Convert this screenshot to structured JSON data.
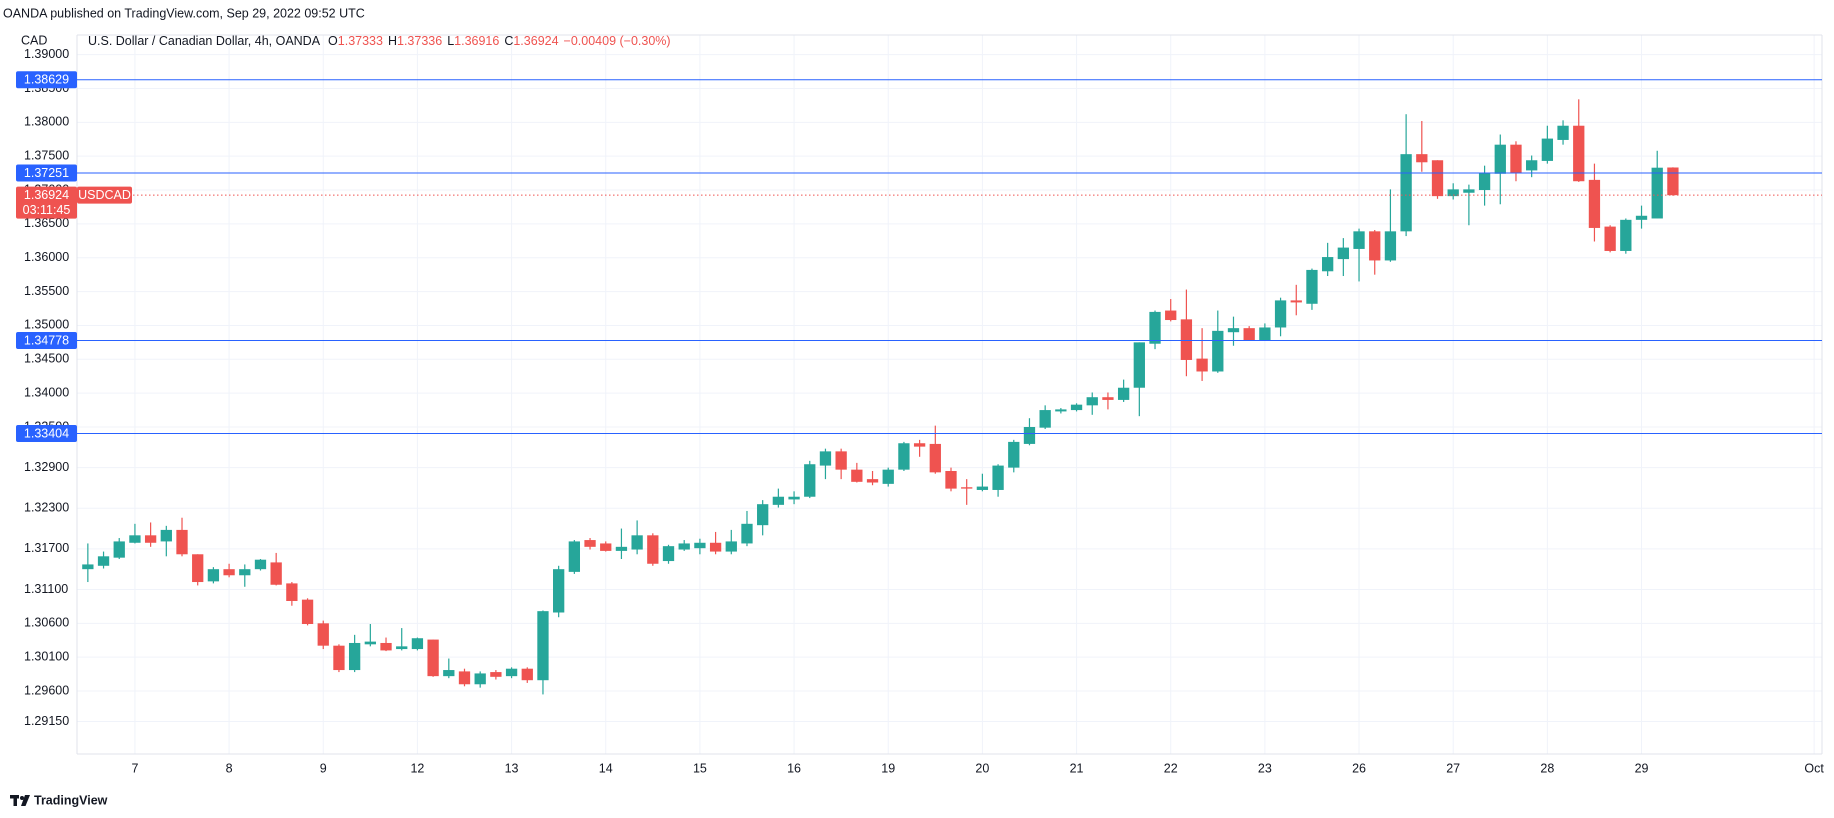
{
  "chart_data": {
    "type": "candlestick",
    "publisher_line": "OANDA published on TradingView.com, Sep 29, 2022 09:52 UTC",
    "instrument": "U.S. Dollar / Canadian Dollar, 4h, OANDA",
    "ohlc_prefixes": [
      "O",
      "H",
      "L",
      "C"
    ],
    "change": "−0.00409 (−0.30%)",
    "currency": "CAD",
    "symbol": "USDCAD",
    "countdown": "03:11:45",
    "brand": "TradingView",
    "up_color": "#26a69a",
    "down_color": "#ef5350",
    "level_color": "#2962ff",
    "grid": true,
    "hlines": [
      1.38629,
      1.37251,
      1.34778,
      1.33404
    ],
    "ylim": [
      1.2867,
      1.3929
    ],
    "yticks": [
      {
        "value": 1.39,
        "label": "1.39000"
      },
      {
        "value": 1.385,
        "label": "1.38500"
      },
      {
        "value": 1.38,
        "label": "1.38000"
      },
      {
        "value": 1.375,
        "label": "1.37500"
      },
      {
        "value": 1.37,
        "label": "1.37000"
      },
      {
        "value": 1.365,
        "label": "1.36500"
      },
      {
        "value": 1.36,
        "label": "1.36000"
      },
      {
        "value": 1.355,
        "label": "1.35500"
      },
      {
        "value": 1.35,
        "label": "1.35000"
      },
      {
        "value": 1.345,
        "label": "1.34500"
      },
      {
        "value": 1.34,
        "label": "1.34000"
      },
      {
        "value": 1.335,
        "label": "1.33500"
      },
      {
        "value": 1.329,
        "label": "1.32900"
      },
      {
        "value": 1.323,
        "label": "1.32300"
      },
      {
        "value": 1.317,
        "label": "1.31700"
      },
      {
        "value": 1.311,
        "label": "1.31100"
      },
      {
        "value": 1.306,
        "label": "1.30600"
      },
      {
        "value": 1.301,
        "label": "1.30100"
      },
      {
        "value": 1.296,
        "label": "1.29600"
      },
      {
        "value": 1.2915,
        "label": "1.29150"
      }
    ],
    "categories": [
      null,
      null,
      null,
      "7",
      null,
      null,
      null,
      null,
      null,
      "8",
      null,
      null,
      null,
      null,
      null,
      "9",
      null,
      null,
      null,
      null,
      null,
      "12",
      null,
      null,
      null,
      null,
      null,
      "13",
      null,
      null,
      null,
      null,
      null,
      "14",
      null,
      null,
      null,
      null,
      null,
      "15",
      null,
      null,
      null,
      null,
      null,
      "16",
      null,
      null,
      null,
      null,
      null,
      "19",
      null,
      null,
      null,
      null,
      null,
      "20",
      null,
      null,
      null,
      null,
      null,
      "21",
      null,
      null,
      null,
      null,
      null,
      "22",
      null,
      null,
      null,
      null,
      null,
      "23",
      null,
      null,
      null,
      null,
      null,
      "26",
      null,
      null,
      null,
      null,
      null,
      "27",
      null,
      null,
      null,
      null,
      null,
      "28",
      null,
      null,
      null,
      null,
      null,
      "29",
      null,
      null,
      null,
      null,
      null,
      null,
      null,
      null,
      null,
      null,
      "Oct"
    ],
    "open": [
      1.314,
      1.3145,
      1.3157,
      1.3179,
      1.319,
      1.3181,
      1.3198,
      1.3162,
      1.3122,
      1.314,
      1.3131,
      1.314,
      1.315,
      1.3119,
      1.3095,
      1.306,
      1.3027,
      1.2991,
      1.3029,
      1.3031,
      1.3022,
      1.3022,
      1.3036,
      1.2982,
      1.2989,
      1.297,
      1.2988,
      1.2982,
      1.2993,
      1.2976,
      1.3076,
      1.3136,
      1.3183,
      1.3178,
      1.3167,
      1.3169,
      1.319,
      1.3152,
      1.3169,
      1.3171,
      1.3179,
      1.3166,
      1.3178,
      1.3205,
      1.3235,
      1.3243,
      1.3247,
      1.3293,
      1.3314,
      1.3287,
      1.3273,
      1.3266,
      1.3287,
      1.3326,
      1.3325,
      1.3285,
      1.3261,
      1.3257,
      1.3257,
      1.329,
      1.3325,
      1.3349,
      1.3373,
      1.3375,
      1.3382,
      1.3394,
      1.339,
      1.3408,
      1.3473,
      1.3522,
      1.3509,
      1.3451,
      1.3432,
      1.349,
      1.3496,
      1.3478,
      1.3497,
      1.3537,
      1.3532,
      1.358,
      1.3598,
      1.3613,
      1.3639,
      1.3596,
      1.3639,
      1.3753,
      1.3744,
      1.3691,
      1.3696,
      1.37,
      1.3724,
      1.3767,
      1.3729,
      1.3743,
      1.3774,
      1.3795,
      1.3715,
      1.3646,
      1.361,
      1.3656,
      1.3658,
      1.37333,
      null,
      null,
      null,
      null,
      null,
      null,
      null,
      null,
      null
    ],
    "high": [
      1.3178,
      1.3166,
      1.3186,
      1.3207,
      1.3209,
      1.3204,
      1.3216,
      1.3162,
      1.3143,
      1.3148,
      1.3147,
      1.3155,
      1.3164,
      1.3121,
      1.3097,
      1.3064,
      1.3029,
      1.3043,
      1.3059,
      1.3039,
      1.3053,
      1.3039,
      1.3036,
      1.3008,
      1.2993,
      1.2989,
      1.2991,
      1.2995,
      1.2995,
      1.3079,
      1.3145,
      1.3183,
      1.3186,
      1.3181,
      1.32,
      1.3212,
      1.3193,
      1.3176,
      1.3183,
      1.3185,
      1.3195,
      1.3198,
      1.3226,
      1.3242,
      1.3259,
      1.3255,
      1.33,
      1.3318,
      1.3318,
      1.3297,
      1.3285,
      1.329,
      1.3328,
      1.3331,
      1.3352,
      1.329,
      1.3273,
      1.3281,
      1.3295,
      1.3331,
      1.3363,
      1.3382,
      1.3378,
      1.3385,
      1.3401,
      1.3401,
      1.342,
      1.3475,
      1.3522,
      1.3539,
      1.3553,
      1.3496,
      1.3522,
      1.3513,
      1.3499,
      1.3503,
      1.3541,
      1.356,
      1.3584,
      1.3622,
      1.3629,
      1.3643,
      1.3641,
      1.3701,
      1.3812,
      1.3802,
      1.3744,
      1.371,
      1.3708,
      1.3736,
      1.3782,
      1.3772,
      1.3751,
      1.3795,
      1.3803,
      1.3834,
      1.3739,
      1.3648,
      1.3658,
      1.3677,
      1.3758,
      1.37336,
      null,
      null,
      null,
      null,
      null,
      null,
      null,
      null,
      null
    ],
    "low": [
      1.3121,
      1.3141,
      1.3155,
      1.3178,
      1.3173,
      1.3159,
      1.3159,
      1.3116,
      1.3119,
      1.3128,
      1.3114,
      1.3138,
      1.3116,
      1.3086,
      1.3057,
      1.3022,
      1.2988,
      1.2988,
      1.3026,
      1.3019,
      1.302,
      1.302,
      1.2981,
      1.2979,
      1.2967,
      1.2965,
      1.2977,
      1.2979,
      1.2972,
      1.2955,
      1.3069,
      1.3133,
      1.3169,
      1.3166,
      1.3155,
      1.3162,
      1.3145,
      1.3148,
      1.3167,
      1.3162,
      1.3162,
      1.3162,
      1.3174,
      1.319,
      1.3231,
      1.3236,
      1.3245,
      1.3273,
      1.3273,
      1.3268,
      1.3264,
      1.3262,
      1.3285,
      1.3306,
      1.3281,
      1.3255,
      1.3235,
      1.3255,
      1.3247,
      1.3283,
      1.3323,
      1.3347,
      1.337,
      1.3373,
      1.3368,
      1.3376,
      1.3387,
      1.3366,
      1.3465,
      1.3506,
      1.3425,
      1.3418,
      1.343,
      1.347,
      1.3477,
      1.3477,
      1.3484,
      1.3515,
      1.3523,
      1.3573,
      1.3573,
      1.3565,
      1.3575,
      1.3594,
      1.3632,
      1.3727,
      1.3687,
      1.3686,
      1.3648,
      1.3677,
      1.3679,
      1.3713,
      1.3719,
      1.3739,
      1.3767,
      1.3712,
      1.3624,
      1.3608,
      1.3606,
      1.3643,
      1.3658,
      1.36916,
      null,
      null,
      null,
      null,
      null,
      null,
      null,
      null,
      null
    ],
    "close": [
      1.3147,
      1.3159,
      1.3181,
      1.319,
      1.3179,
      1.3198,
      1.3162,
      1.3121,
      1.314,
      1.3131,
      1.314,
      1.3154,
      1.3117,
      1.3093,
      1.3059,
      1.3027,
      1.2991,
      1.3031,
      1.3033,
      1.302,
      1.3026,
      1.3038,
      1.2982,
      1.2991,
      1.297,
      1.2986,
      1.2981,
      1.2993,
      1.2976,
      1.3078,
      1.314,
      1.3181,
      1.3173,
      1.3167,
      1.3173,
      1.319,
      1.3148,
      1.3174,
      1.3178,
      1.3179,
      1.3166,
      1.3181,
      1.3207,
      1.3236,
      1.3247,
      1.3247,
      1.3295,
      1.3314,
      1.3287,
      1.3269,
      1.3268,
      1.3287,
      1.3326,
      1.3321,
      1.3283,
      1.3259,
      1.3259,
      1.3262,
      1.3293,
      1.3328,
      1.335,
      1.3375,
      1.3376,
      1.3383,
      1.3394,
      1.339,
      1.3408,
      1.3475,
      1.352,
      1.3508,
      1.3449,
      1.3432,
      1.3492,
      1.3496,
      1.3478,
      1.3497,
      1.3537,
      1.3534,
      1.3582,
      1.3601,
      1.3615,
      1.3639,
      1.3596,
      1.3639,
      1.3753,
      1.3741,
      1.3691,
      1.3701,
      1.3701,
      1.3725,
      1.3767,
      1.3725,
      1.3744,
      1.3776,
      1.3795,
      1.3713,
      1.3644,
      1.361,
      1.3656,
      1.3662,
      1.3733,
      1.36924,
      null,
      null,
      null,
      null,
      null,
      null,
      null,
      null,
      null
    ]
  }
}
